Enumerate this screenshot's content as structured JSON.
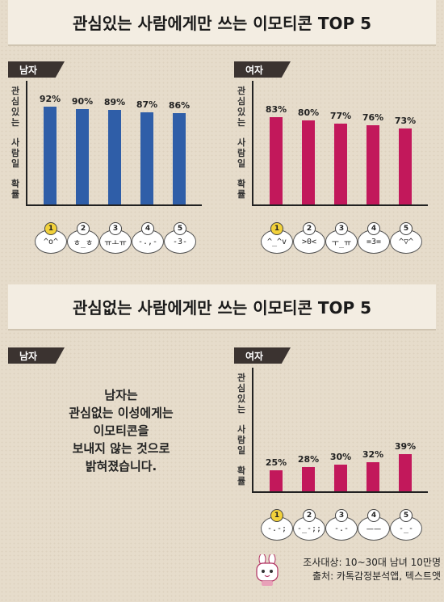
{
  "banners": {
    "interested": "관심있는 사람에게만 쓰는 이모티콘 TOP 5",
    "uninterested": "관심없는 사람에게만 쓰는 이모티콘 TOP 5"
  },
  "ylabel_lines": [
    "관심",
    "있는",
    "사람",
    "일",
    "확률"
  ],
  "ylabel_chars": [
    "관",
    "심",
    "있",
    "는",
    "사",
    "람",
    "일",
    "확",
    "률"
  ],
  "male_uninterested_note": [
    "남자는",
    "관심없는 이성에게는",
    "이모티콘을",
    "보내지 않는 것으로",
    "밝혀졌습니다."
  ],
  "footer": {
    "survey": "조사대상: 10~30대 남녀 10만명",
    "source": "출처: 카톡감정분석앱, 텍스트앳"
  },
  "colors": {
    "male": "#2f5ea8",
    "female": "#c2185b",
    "rank1": "#f2d13b",
    "tag": "#3b3330"
  },
  "chart_data": [
    {
      "type": "bar",
      "title": "관심있는 사람에게만 쓰는 이모티콘 TOP 5",
      "panel": "남자",
      "ylabel": "관심있는 사람일 확률",
      "ylim": [
        0,
        100
      ],
      "categories": [
        "^o^",
        "ㅎ_ㅎ",
        "ㅠㅗㅠ",
        "-.,-",
        "-3-"
      ],
      "ranks": [
        "1",
        "2",
        "3",
        "4",
        "5"
      ],
      "values": [
        92,
        90,
        89,
        87,
        86
      ],
      "labels": [
        "92%",
        "90%",
        "89%",
        "87%",
        "86%"
      ]
    },
    {
      "type": "bar",
      "title": "관심있는 사람에게만 쓰는 이모티콘 TOP 5",
      "panel": "여자",
      "ylabel": "관심있는 사람일 확률",
      "ylim": [
        0,
        100
      ],
      "categories": [
        "^_^v",
        ">0<",
        "ㅜ_ㅠ",
        "=3=",
        "^▽^"
      ],
      "ranks": [
        "1",
        "2",
        "3",
        "4",
        "5"
      ],
      "values": [
        83,
        80,
        77,
        76,
        73
      ],
      "labels": [
        "83%",
        "80%",
        "77%",
        "76%",
        "73%"
      ]
    },
    {
      "type": "bar",
      "title": "관심없는 사람에게만 쓰는 이모티콘 TOP 5",
      "panel": "여자",
      "ylabel": "관심있는 사람일 확률",
      "ylim": [
        0,
        100
      ],
      "categories": [
        "-.-;",
        "-_-;;",
        "-.-",
        "ㅡㅡ",
        "-_-"
      ],
      "ranks": [
        "1",
        "2",
        "3",
        "4",
        "5"
      ],
      "values": [
        25,
        28,
        30,
        32,
        39
      ],
      "labels": [
        "25%",
        "28%",
        "30%",
        "32%",
        "39%"
      ]
    }
  ],
  "panels": {
    "male": "남자",
    "female": "여자"
  }
}
